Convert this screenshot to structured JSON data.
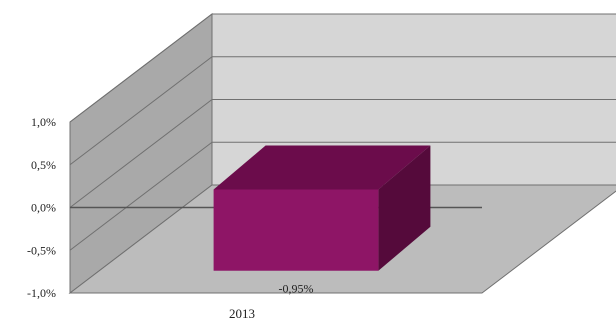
{
  "chart_data": {
    "type": "bar",
    "style": "3d",
    "categories": [
      "2013"
    ],
    "series": [
      {
        "values": [
          -0.95
        ],
        "data_labels": [
          "-0,95%"
        ]
      }
    ],
    "ylim": [
      -1.0,
      1.0
    ],
    "yticks": [
      1.0,
      0.5,
      0.0,
      -0.5,
      -1.0
    ],
    "ytick_labels": [
      "1,0%",
      "0,5%",
      "0,0%",
      "-0,5%",
      "-1,0%"
    ],
    "title": "",
    "xlabel": "",
    "ylabel": "",
    "grid": true,
    "legend": "none",
    "colors": {
      "bar_front": "#8e1566",
      "bar_top": "#6b0c4b",
      "bar_side": "#550a3b",
      "back_wall": "#d6d6d6",
      "side_wall": "#a9a9a9",
      "floor": "#bcbcbc",
      "gridline": "#707070",
      "zero_line": "#555555"
    }
  }
}
